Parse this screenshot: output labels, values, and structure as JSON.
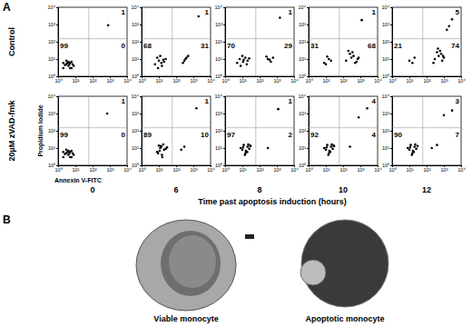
{
  "figure": {
    "panel_labels": [
      "A",
      "B"
    ],
    "row_labels": [
      "Control",
      "20µM zVAD-fmk"
    ],
    "col_labels": [
      0,
      6,
      8,
      10,
      12
    ],
    "col_title": "Time past apoptosis induction (hours)",
    "image_labels": [
      "Viable monocyte",
      "Apoptotic monocyte"
    ]
  },
  "chart_data": [
    {
      "type": "scatter",
      "log": true,
      "xlim": [
        1,
        10000
      ],
      "ylim": [
        1,
        10000
      ],
      "xticks": [
        {
          "value": 1,
          "label": "10⁰"
        },
        {
          "value": 10,
          "label": "10¹"
        },
        {
          "value": 100,
          "label": "10²"
        },
        {
          "value": 1000,
          "label": "10³"
        },
        {
          "value": 10000,
          "label": "10⁴"
        }
      ],
      "yticks": [
        {
          "value": 1,
          "label": "10⁰"
        },
        {
          "value": 10,
          "label": "10¹"
        },
        {
          "value": 100,
          "label": "10²"
        },
        {
          "value": 1000,
          "label": "10³"
        },
        {
          "value": 10000,
          "label": "10⁴"
        }
      ],
      "color": "#000000",
      "marker": "dot",
      "x_gate": 60,
      "y_gate": 150,
      "quadrants": {
        "upper_right": 1,
        "lower_left": 99,
        "lower_right": 0
      },
      "x": [
        2,
        3,
        4,
        5,
        3,
        6,
        4,
        2.5,
        7,
        5,
        3.5,
        6,
        4.5,
        2,
        8,
        800
      ],
      "y": [
        3,
        5,
        4,
        6,
        8,
        3,
        7,
        4.5,
        5,
        3,
        6,
        7,
        5,
        6,
        4,
        900
      ]
    },
    {
      "type": "scatter",
      "log": true,
      "xlim": [
        1,
        10000
      ],
      "ylim": [
        1,
        10000
      ],
      "xticks": [
        {
          "value": 1,
          "label": "10⁰"
        },
        {
          "value": 10,
          "label": "10¹"
        },
        {
          "value": 100,
          "label": "10²"
        },
        {
          "value": 1000,
          "label": "10³"
        },
        {
          "value": 10000,
          "label": "10⁴"
        }
      ],
      "yticks": [
        {
          "value": 1,
          "label": "10⁰"
        },
        {
          "value": 10,
          "label": "10¹"
        },
        {
          "value": 100,
          "label": "10²"
        },
        {
          "value": 1000,
          "label": "10³"
        },
        {
          "value": 10000,
          "label": "10⁴"
        }
      ],
      "color": "#000000",
      "marker": "dot",
      "x_gate": 60,
      "y_gate": 150,
      "quadrants": {
        "upper_right": 1,
        "lower_left": 68,
        "lower_right": 31
      },
      "x": [
        6,
        10,
        15,
        8,
        20,
        12,
        25,
        9,
        14,
        18,
        300,
        400,
        250,
        500,
        350,
        2000
      ],
      "y": [
        5,
        8,
        4,
        12,
        7,
        15,
        10,
        3,
        6,
        9,
        8,
        12,
        6,
        15,
        10,
        3000
      ]
    },
    {
      "type": "scatter",
      "log": true,
      "xlim": [
        1,
        10000
      ],
      "ylim": [
        1,
        10000
      ],
      "xticks": [
        {
          "value": 1,
          "label": "10⁰"
        },
        {
          "value": 10,
          "label": "10¹"
        },
        {
          "value": 100,
          "label": "10²"
        },
        {
          "value": 1000,
          "label": "10³"
        },
        {
          "value": 10000,
          "label": "10⁴"
        }
      ],
      "yticks": [
        {
          "value": 1,
          "label": "10⁰"
        },
        {
          "value": 10,
          "label": "10¹"
        },
        {
          "value": 100,
          "label": "10²"
        },
        {
          "value": 1000,
          "label": "10³"
        },
        {
          "value": 10000,
          "label": "10⁴"
        }
      ],
      "color": "#000000",
      "marker": "dot",
      "x_gate": 60,
      "y_gate": 150,
      "quadrants": {
        "upper_right": 1,
        "lower_left": 70,
        "lower_right": 29
      },
      "x": [
        5,
        8,
        12,
        15,
        10,
        20,
        7,
        18,
        11,
        25,
        300,
        450,
        250,
        380,
        600,
        1500
      ],
      "y": [
        6,
        4,
        9,
        12,
        15,
        8,
        10,
        5,
        7,
        11,
        10,
        7,
        14,
        9,
        12,
        2500
      ]
    },
    {
      "type": "scatter",
      "log": true,
      "xlim": [
        1,
        10000
      ],
      "ylim": [
        1,
        10000
      ],
      "xticks": [
        {
          "value": 1,
          "label": "10⁰"
        },
        {
          "value": 10,
          "label": "10¹"
        },
        {
          "value": 100,
          "label": "10²"
        },
        {
          "value": 1000,
          "label": "10³"
        },
        {
          "value": 10000,
          "label": "10⁴"
        }
      ],
      "yticks": [
        {
          "value": 1,
          "label": "10⁰"
        },
        {
          "value": 10,
          "label": "10¹"
        },
        {
          "value": 100,
          "label": "10²"
        },
        {
          "value": 1000,
          "label": "10³"
        },
        {
          "value": 10000,
          "label": "10⁴"
        }
      ],
      "color": "#000000",
      "marker": "dot",
      "x_gate": 60,
      "y_gate": 150,
      "quadrants": {
        "upper_right": 1,
        "lower_left": 31,
        "lower_right": 68
      },
      "x": [
        8,
        15,
        12,
        20,
        10,
        150,
        300,
        500,
        250,
        700,
        400,
        200,
        600,
        350,
        800,
        1200
      ],
      "y": [
        6,
        10,
        14,
        8,
        5,
        8,
        12,
        6,
        20,
        10,
        15,
        30,
        7,
        25,
        12,
        1800
      ]
    },
    {
      "type": "scatter",
      "log": true,
      "xlim": [
        1,
        10000
      ],
      "ylim": [
        1,
        10000
      ],
      "xticks": [
        {
          "value": 1,
          "label": "10⁰"
        },
        {
          "value": 10,
          "label": "10¹"
        },
        {
          "value": 100,
          "label": "10²"
        },
        {
          "value": 1000,
          "label": "10³"
        },
        {
          "value": 10000,
          "label": "10⁴"
        }
      ],
      "yticks": [
        {
          "value": 1,
          "label": "10⁰"
        },
        {
          "value": 10,
          "label": "10¹"
        },
        {
          "value": 100,
          "label": "10²"
        },
        {
          "value": 1000,
          "label": "10³"
        },
        {
          "value": 10000,
          "label": "10⁴"
        }
      ],
      "color": "#000000",
      "marker": "dot",
      "x_gate": 60,
      "y_gate": 150,
      "quadrants": {
        "upper_right": 5,
        "lower_left": 21,
        "lower_right": 74
      },
      "x": [
        10,
        20,
        15,
        300,
        500,
        800,
        400,
        1000,
        600,
        250,
        700,
        450,
        900,
        2000,
        3000,
        1500
      ],
      "y": [
        8,
        12,
        6,
        10,
        15,
        8,
        25,
        12,
        30,
        6,
        20,
        40,
        15,
        800,
        2000,
        500
      ]
    },
    {
      "type": "scatter",
      "log": true,
      "xlim": [
        1,
        10000
      ],
      "ylim": [
        1,
        10000
      ],
      "xticks": [
        {
          "value": 1,
          "label": "10⁰"
        },
        {
          "value": 10,
          "label": "10¹"
        },
        {
          "value": 100,
          "label": "10²"
        },
        {
          "value": 1000,
          "label": "10³"
        },
        {
          "value": 10000,
          "label": "10⁴"
        }
      ],
      "yticks": [
        {
          "value": 1,
          "label": "10⁰"
        },
        {
          "value": 10,
          "label": "10¹"
        },
        {
          "value": 100,
          "label": "10²"
        },
        {
          "value": 1000,
          "label": "10³"
        },
        {
          "value": 10000,
          "label": "10⁴"
        }
      ],
      "color": "#000000",
      "marker": "dot",
      "x_gate": 60,
      "y_gate": 150,
      "quadrants": {
        "upper_right": 1,
        "lower_left": 99,
        "lower_right": 0
      },
      "x_label": "Annexin V-FITC",
      "y_label": "Propidium Iodide",
      "x": [
        2,
        3,
        4,
        5,
        3,
        6,
        4,
        2.5,
        7,
        5,
        3.5,
        6,
        4.5,
        2,
        8,
        700
      ],
      "y": [
        3,
        5,
        4,
        6,
        8,
        3,
        7,
        4.5,
        5,
        3,
        6,
        7,
        5,
        6,
        4,
        1000
      ]
    },
    {
      "type": "scatter",
      "log": true,
      "xlim": [
        1,
        10000
      ],
      "ylim": [
        1,
        10000
      ],
      "xticks": [
        {
          "value": 1,
          "label": "10⁰"
        },
        {
          "value": 10,
          "label": "10¹"
        },
        {
          "value": 100,
          "label": "10²"
        },
        {
          "value": 1000,
          "label": "10³"
        },
        {
          "value": 10000,
          "label": "10⁴"
        }
      ],
      "yticks": [
        {
          "value": 1,
          "label": "10⁰"
        },
        {
          "value": 10,
          "label": "10¹"
        },
        {
          "value": 100,
          "label": "10²"
        },
        {
          "value": 1000,
          "label": "10³"
        },
        {
          "value": 10000,
          "label": "10⁴"
        }
      ],
      "color": "#000000",
      "marker": "dot",
      "x_gate": 60,
      "y_gate": 150,
      "quadrants": {
        "upper_right": 1,
        "lower_left": 89,
        "lower_right": 10
      },
      "x": [
        8,
        12,
        15,
        10,
        20,
        14,
        9,
        18,
        25,
        11,
        30,
        16,
        13,
        200,
        300,
        1500
      ],
      "y": [
        6,
        10,
        4,
        14,
        8,
        12,
        5,
        16,
        9,
        7,
        11,
        3,
        13,
        8,
        12,
        2000
      ]
    },
    {
      "type": "scatter",
      "log": true,
      "xlim": [
        1,
        10000
      ],
      "ylim": [
        1,
        10000
      ],
      "xticks": [
        {
          "value": 1,
          "label": "10⁰"
        },
        {
          "value": 10,
          "label": "10¹"
        },
        {
          "value": 100,
          "label": "10²"
        },
        {
          "value": 1000,
          "label": "10³"
        },
        {
          "value": 10000,
          "label": "10⁴"
        }
      ],
      "yticks": [
        {
          "value": 1,
          "label": "10⁰"
        },
        {
          "value": 10,
          "label": "10¹"
        },
        {
          "value": 100,
          "label": "10²"
        },
        {
          "value": 1000,
          "label": "10³"
        },
        {
          "value": 10000,
          "label": "10⁴"
        }
      ],
      "color": "#000000",
      "marker": "dot",
      "x_gate": 60,
      "y_gate": 150,
      "quadrants": {
        "upper_right": 1,
        "lower_left": 97,
        "lower_right": 2
      },
      "x": [
        10,
        15,
        20,
        12,
        25,
        18,
        8,
        30,
        14,
        22,
        16,
        11,
        28,
        19,
        300,
        1200
      ],
      "y": [
        8,
        5,
        12,
        15,
        9,
        6,
        10,
        13,
        4,
        16,
        7,
        11,
        14,
        6,
        10,
        1800
      ]
    },
    {
      "type": "scatter",
      "log": true,
      "xlim": [
        1,
        10000
      ],
      "ylim": [
        1,
        10000
      ],
      "xticks": [
        {
          "value": 1,
          "label": "10⁰"
        },
        {
          "value": 10,
          "label": "10¹"
        },
        {
          "value": 100,
          "label": "10²"
        },
        {
          "value": 1000,
          "label": "10³"
        },
        {
          "value": 10000,
          "label": "10⁴"
        }
      ],
      "yticks": [
        {
          "value": 1,
          "label": "10⁰"
        },
        {
          "value": 10,
          "label": "10¹"
        },
        {
          "value": 100,
          "label": "10²"
        },
        {
          "value": 1000,
          "label": "10³"
        },
        {
          "value": 10000,
          "label": "10⁴"
        }
      ],
      "color": "#000000",
      "marker": "dot",
      "x_gate": 60,
      "y_gate": 150,
      "quadrants": {
        "upper_right": 4,
        "lower_left": 92,
        "lower_right": 4
      },
      "x": [
        10,
        15,
        20,
        12,
        25,
        18,
        8,
        30,
        14,
        22,
        16,
        11,
        28,
        250,
        800,
        2500
      ],
      "y": [
        8,
        5,
        12,
        15,
        9,
        6,
        10,
        13,
        4,
        16,
        7,
        11,
        14,
        12,
        600,
        2000
      ]
    },
    {
      "type": "scatter",
      "log": true,
      "xlim": [
        1,
        10000
      ],
      "ylim": [
        1,
        10000
      ],
      "xticks": [
        {
          "value": 1,
          "label": "10⁰"
        },
        {
          "value": 10,
          "label": "10¹"
        },
        {
          "value": 100,
          "label": "10²"
        },
        {
          "value": 1000,
          "label": "10³"
        },
        {
          "value": 10000,
          "label": "10⁴"
        }
      ],
      "yticks": [
        {
          "value": 1,
          "label": "10⁰"
        },
        {
          "value": 10,
          "label": "10¹"
        },
        {
          "value": 100,
          "label": "10²"
        },
        {
          "value": 1000,
          "label": "10³"
        },
        {
          "value": 10000,
          "label": "10⁴"
        }
      ],
      "color": "#000000",
      "marker": "dot",
      "x_gate": 60,
      "y_gate": 150,
      "quadrants": {
        "upper_right": 3,
        "lower_left": 90,
        "lower_right": 7
      },
      "x": [
        10,
        15,
        20,
        12,
        25,
        18,
        8,
        30,
        14,
        22,
        16,
        11,
        200,
        400,
        1000,
        3000
      ],
      "y": [
        8,
        5,
        12,
        15,
        9,
        6,
        10,
        13,
        4,
        16,
        7,
        11,
        10,
        15,
        800,
        1500
      ]
    }
  ]
}
